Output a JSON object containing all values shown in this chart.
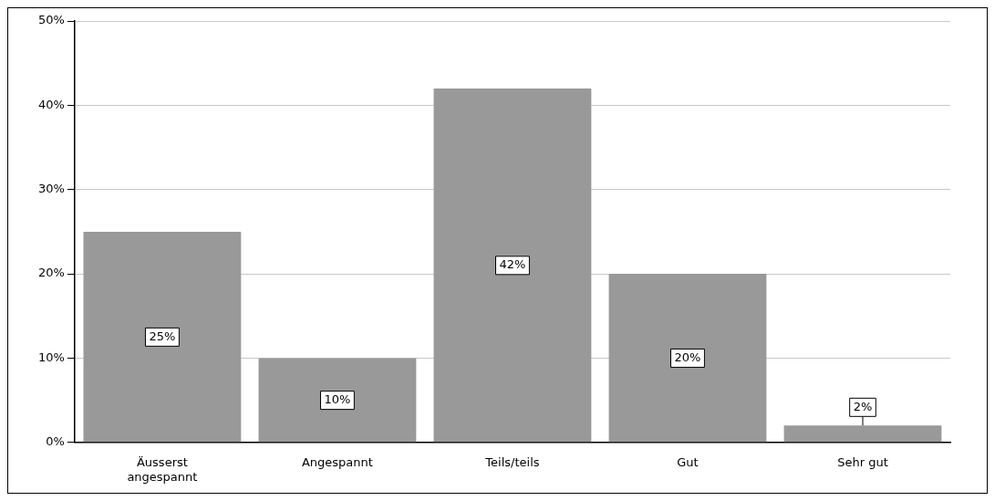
{
  "chart_data": {
    "type": "bar",
    "categories": [
      "Äusserst angespannt",
      "Angespannt",
      "Teils/teils",
      "Gut",
      "Sehr gut"
    ],
    "values": [
      25,
      10,
      42,
      20,
      2
    ],
    "color": "#999999",
    "data_labels": true,
    "value_labels": [
      "25%",
      "10%",
      "42%",
      "20%",
      "2%"
    ],
    "ylim": [
      0,
      50
    ],
    "yticks": [
      {
        "value": 0,
        "label": "0%"
      },
      {
        "value": 10,
        "label": "10%"
      },
      {
        "value": 20,
        "label": "20%"
      },
      {
        "value": 30,
        "label": "30%"
      },
      {
        "value": 40,
        "label": "40%"
      },
      {
        "value": 50,
        "label": "50%"
      }
    ],
    "grid": "y",
    "legend": false
  }
}
